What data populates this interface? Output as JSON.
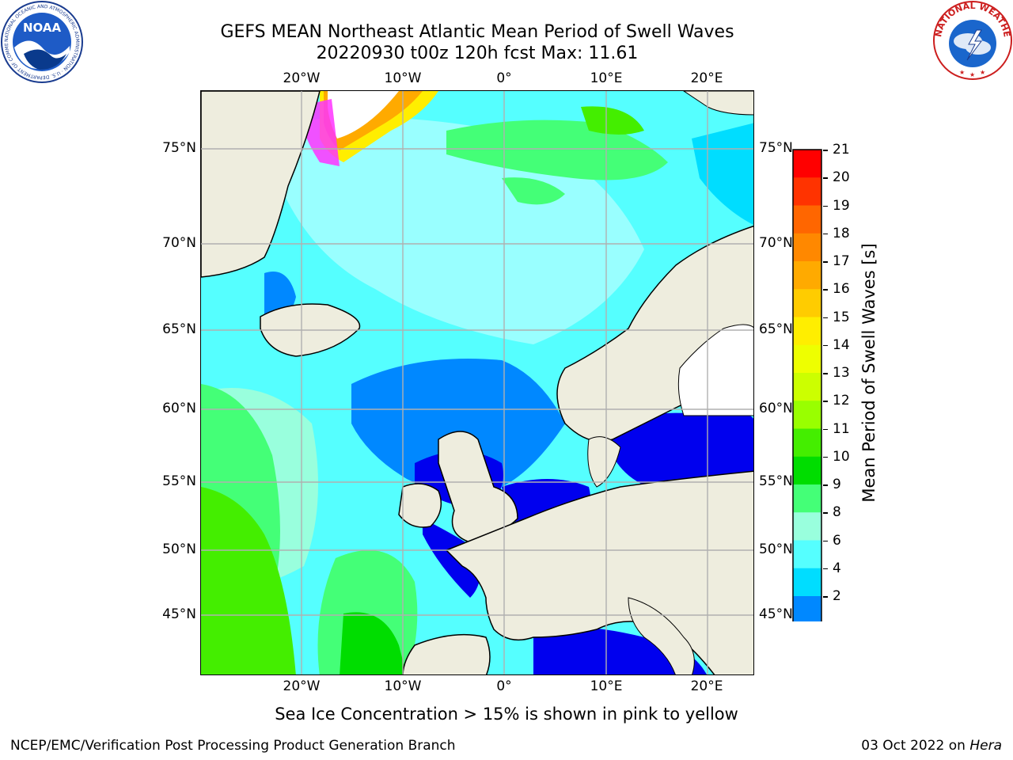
{
  "title": {
    "line1": "GEFS MEAN Northeast Atlantic Mean Period of Swell Waves",
    "line2": "20220930 t00z 120h fcst   Max: 11.61"
  },
  "map": {
    "lon_labels": [
      "20°W",
      "10°W",
      "0°",
      "10°E",
      "20°E"
    ],
    "lat_labels": [
      "75°N",
      "70°N",
      "65°N",
      "60°N",
      "55°N",
      "50°N",
      "45°N"
    ],
    "colors": {
      "land": "#eeedde",
      "ice_fill": "#ffffff",
      "grid": "#b0b0b0"
    }
  },
  "colorbar": {
    "label": "Mean Period of Swell Waves [s]",
    "ticks": [
      "21",
      "20",
      "19",
      "18",
      "17",
      "16",
      "15",
      "14",
      "13",
      "12",
      "11",
      "10",
      "9",
      "8",
      "6",
      "4",
      "2"
    ],
    "colors": [
      "#ff0000",
      "#ff3300",
      "#ff6600",
      "#ff8800",
      "#ffaa00",
      "#ffcc00",
      "#ffee00",
      "#eeff00",
      "#ccff00",
      "#99ff00",
      "#44ee00",
      "#00dd00",
      "#44ff77",
      "#99ffdd",
      "#55ffff",
      "#00ddff",
      "#0088ff"
    ],
    "extend_color": "#0000ee"
  },
  "footer": {
    "sea_ice_note": "Sea Ice Concentration > 15% is shown in pink to yellow",
    "credit": "NCEP/EMC/Verification Post Processing Product Generation Branch",
    "date_prefix": "03 Oct 2022 on ",
    "machine": "Hera"
  },
  "logos": {
    "noaa_text": "NOAA",
    "noaa_ring": "NATIONAL OCEANIC AND ATMOSPHERIC ADMINISTRATION · U.S. DEPARTMENT OF COMMERCE",
    "nws_ring": "NATIONAL WEATHER SERVICE"
  }
}
